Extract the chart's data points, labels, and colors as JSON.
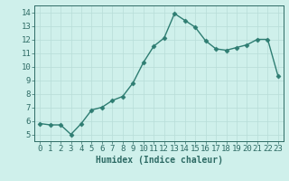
{
  "title": "",
  "xlabel": "Humidex (Indice chaleur)",
  "ylabel": "",
  "x": [
    0,
    1,
    2,
    3,
    4,
    5,
    6,
    7,
    8,
    9,
    10,
    11,
    12,
    13,
    14,
    15,
    16,
    17,
    18,
    19,
    20,
    21,
    22,
    23
  ],
  "y": [
    5.8,
    5.7,
    5.7,
    5.0,
    5.8,
    6.8,
    7.0,
    7.5,
    7.8,
    8.8,
    10.3,
    11.5,
    12.1,
    13.9,
    13.4,
    12.9,
    11.9,
    11.3,
    11.2,
    11.4,
    11.6,
    12.0,
    12.0,
    9.3
  ],
  "line_color": "#2e7d72",
  "marker": "D",
  "marker_size": 2.5,
  "bg_color": "#cff0eb",
  "grid_color": "#b8ddd8",
  "tick_color": "#2e6b65",
  "label_color": "#2e6b65",
  "ylim": [
    4.5,
    14.5
  ],
  "xlim": [
    -0.5,
    23.5
  ],
  "yticks": [
    5,
    6,
    7,
    8,
    9,
    10,
    11,
    12,
    13,
    14
  ],
  "xticks": [
    0,
    1,
    2,
    3,
    4,
    5,
    6,
    7,
    8,
    9,
    10,
    11,
    12,
    13,
    14,
    15,
    16,
    17,
    18,
    19,
    20,
    21,
    22,
    23
  ],
  "linewidth": 1.0,
  "xlabel_fontsize": 7,
  "tick_fontsize": 6.5
}
